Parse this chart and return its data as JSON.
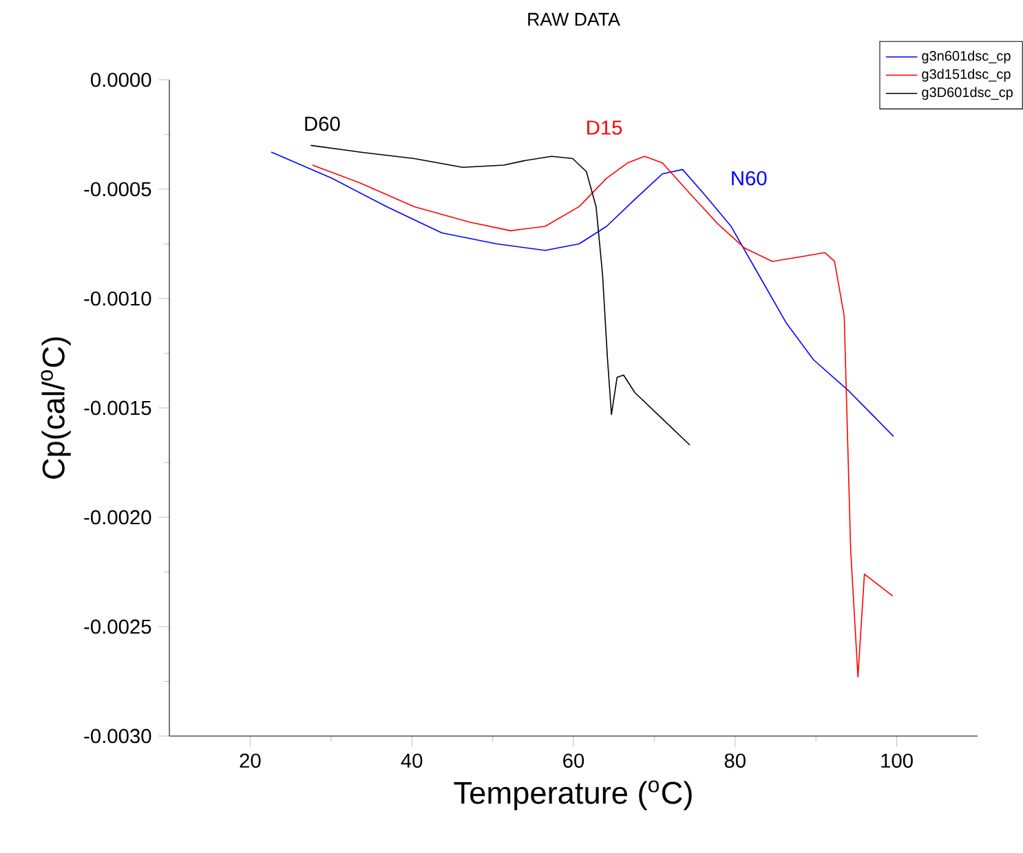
{
  "chart_data": {
    "type": "line",
    "title": "RAW DATA",
    "xlabel": "Temperature ($^{o}$C)",
    "ylabel": "Cp(cal/$^{o}$C)",
    "xlim": [
      10,
      110
    ],
    "xticks": [
      20,
      40,
      60,
      80,
      100
    ],
    "ylim": [
      -0.003,
      0
    ],
    "yticks": [
      {
        "value": 0,
        "label": "0.0000"
      },
      {
        "value": -0.0005,
        "label": "-0.0005"
      },
      {
        "value": -0.001,
        "label": "-0.0010"
      },
      {
        "value": -0.0015,
        "label": "-0.0015"
      },
      {
        "value": -0.002,
        "label": "-0.0020"
      },
      {
        "value": -0.0025,
        "label": "-0.0025"
      },
      {
        "value": -0.003,
        "label": "-0.0030"
      }
    ],
    "legend": "top right",
    "series": [
      {
        "name": "g3n601dsc_cp",
        "color": "#0000ff",
        "x": [
          22.6,
          30.1,
          36.9,
          43.7,
          50.5,
          56.5,
          60.7,
          64.1,
          67.5,
          71.0,
          73.5,
          76.1,
          79.5,
          82.9,
          86.3,
          89.7,
          94.0,
          99.6
        ],
        "values": [
          -0.00033,
          -0.00045,
          -0.00058,
          -0.0007,
          -0.00075,
          -0.00078,
          -0.00075,
          -0.00067,
          -0.00055,
          -0.00043,
          -0.00041,
          -0.00052,
          -0.00067,
          -0.00089,
          -0.00111,
          -0.00128,
          -0.00142,
          -0.00163
        ]
      },
      {
        "name": "g3d151dsc_cp",
        "color": "#ff0000",
        "x": [
          27.7,
          33.5,
          40.3,
          47.1,
          52.2,
          56.5,
          60.7,
          64.1,
          66.7,
          68.8,
          71.0,
          74.4,
          77.9,
          81.2,
          84.6,
          88.0,
          91.1,
          92.3,
          93.5,
          94.3,
          95.2,
          96.0,
          99.5
        ],
        "values": [
          -0.00039,
          -0.00047,
          -0.00058,
          -0.00065,
          -0.00069,
          -0.00067,
          -0.00058,
          -0.00045,
          -0.00038,
          -0.00035,
          -0.00038,
          -0.00052,
          -0.00066,
          -0.00077,
          -0.00083,
          -0.00081,
          -0.00079,
          -0.00083,
          -0.00108,
          -0.00215,
          -0.00273,
          -0.00226,
          -0.00236
        ]
      },
      {
        "name": "g3D601dsc_cp",
        "color": "#000000",
        "x": [
          27.5,
          33.5,
          40.3,
          46.3,
          51.4,
          53.9,
          57.3,
          59.9,
          61.6,
          62.8,
          63.6,
          64.2,
          64.7,
          65.4,
          66.2,
          67.6,
          71.0,
          74.4
        ],
        "values": [
          -0.0003,
          -0.00033,
          -0.00036,
          -0.0004,
          -0.00039,
          -0.00037,
          -0.00035,
          -0.00036,
          -0.00042,
          -0.00058,
          -0.00089,
          -0.00127,
          -0.00153,
          -0.00136,
          -0.00135,
          -0.00143,
          -0.00155,
          -0.00167
        ]
      }
    ],
    "annotations": [
      "N60",
      "D15",
      "D60"
    ]
  }
}
